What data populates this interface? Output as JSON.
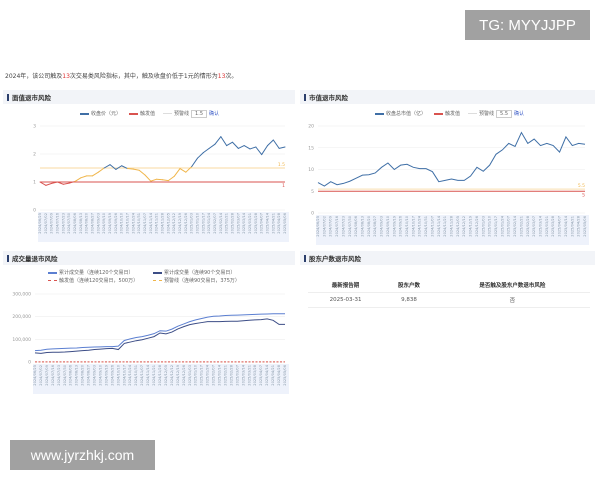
{
  "watermarks": {
    "tg": "TG: MYYJJPP",
    "site": "www.jyrzhkj.com"
  },
  "intro": {
    "p1": "2024年，该公司触及",
    "n1": "13",
    "p2": "次交易类风险指标，其中，触及收盘价低于1元的情形为",
    "n2": "13",
    "p3": "次。"
  },
  "sections": {
    "face": "面值退市风险",
    "cap": "市值退市风险",
    "vol": "成交量退市风险",
    "holders": "股东户数退市风险"
  },
  "colors": {
    "blue": "#3f6fa6",
    "red": "#d9534f",
    "orange": "#f0b64b",
    "navy": "#3c4d86",
    "light": "#5b7fd1"
  },
  "chart_data": [
    {
      "type": "line",
      "title": "面值退市风险",
      "legend": {
        "series": "收盘价（元）",
        "trigger": "触发值",
        "warn": "预警线",
        "warn_value": "1.5",
        "confirm": "确认"
      },
      "ylim": [
        0,
        3
      ],
      "yticks": [
        "0",
        "1",
        "2",
        "3"
      ],
      "trigger_value": 1,
      "warn_line": 1.5,
      "trigger_label": "1",
      "warn_label": "1.5",
      "x": [
        "2024/06/25",
        "2024/07/02",
        "2024/07/09",
        "2024/07/16",
        "2024/07/23",
        "2024/07/30",
        "2024/08/06",
        "2024/08/13",
        "2024/08/20",
        "2024/08/27",
        "2024/09/03",
        "2024/09/10",
        "2024/09/19",
        "2024/09/26",
        "2024/10/10",
        "2024/10/17",
        "2024/10/24",
        "2024/10/31",
        "2024/11/07",
        "2024/11/14",
        "2024/11/21",
        "2024/11/28",
        "2024/12/05",
        "2024/12/12",
        "2024/12/19",
        "2024/12/26",
        "2025/01/03",
        "2025/01/10",
        "2025/01/17",
        "2025/01/24",
        "2025/02/07",
        "2025/02/14",
        "2025/02/21",
        "2025/02/28",
        "2025/03/07",
        "2025/03/14",
        "2025/03/21",
        "2025/03/28",
        "2025/04/07",
        "2025/04/14",
        "2025/04/21",
        "2025/04/28",
        "2025/05/06"
      ],
      "values": [
        1.0,
        0.88,
        0.95,
        1.0,
        0.92,
        0.96,
        1.02,
        1.15,
        1.22,
        1.22,
        1.35,
        1.5,
        1.62,
        1.45,
        1.58,
        1.48,
        1.46,
        1.42,
        1.25,
        1.03,
        1.1,
        1.08,
        1.05,
        1.2,
        1.48,
        1.35,
        1.55,
        1.85,
        2.05,
        2.2,
        2.35,
        2.62,
        2.3,
        2.42,
        2.2,
        2.3,
        2.18,
        2.25,
        1.98,
        2.3,
        2.5,
        2.2,
        2.25
      ]
    },
    {
      "type": "line",
      "title": "市值退市风险",
      "legend": {
        "series": "收盘总市值（亿）",
        "trigger": "触发值",
        "warn": "预警线",
        "warn_value": "5.5",
        "confirm": "确认"
      },
      "ylim": [
        0,
        20
      ],
      "yticks": [
        "0",
        "5",
        "10",
        "15",
        "20"
      ],
      "trigger_value": 5,
      "warn_line": 5.5,
      "trigger_label": "5",
      "warn_label": "5.5",
      "x": [
        "2024/06/25",
        "2024/07/02",
        "2024/07/09",
        "2024/07/16",
        "2024/07/23",
        "2024/07/30",
        "2024/08/06",
        "2024/08/13",
        "2024/08/20",
        "2024/08/27",
        "2024/09/03",
        "2024/09/10",
        "2024/09/19",
        "2024/09/26",
        "2024/10/10",
        "2024/10/17",
        "2024/10/24",
        "2024/10/31",
        "2024/11/07",
        "2024/11/14",
        "2024/11/21",
        "2024/11/28",
        "2024/12/05",
        "2024/12/12",
        "2024/12/19",
        "2024/12/26",
        "2025/01/03",
        "2025/01/10",
        "2025/01/17",
        "2025/01/24",
        "2025/02/07",
        "2025/02/14",
        "2025/02/21",
        "2025/02/28",
        "2025/03/07",
        "2025/03/14",
        "2025/03/21",
        "2025/03/28",
        "2025/04/07",
        "2025/04/14",
        "2025/04/21",
        "2025/04/28",
        "2025/05/06"
      ],
      "values": [
        7,
        6.2,
        7.2,
        6.5,
        6.8,
        7.3,
        8,
        8.7,
        8.8,
        9.2,
        10.5,
        11.5,
        10,
        11,
        11.2,
        10.5,
        10.2,
        10.2,
        9.5,
        7.2,
        7.5,
        7.8,
        7.5,
        7.5,
        8.5,
        10.5,
        9.6,
        11,
        13.5,
        14.5,
        16,
        15.3,
        18.5,
        16,
        17,
        15.5,
        16,
        15.5,
        14,
        17.5,
        15.5,
        16,
        15.8
      ]
    },
    {
      "type": "line",
      "title": "成交量退市风险",
      "legend": {
        "s1": "累计成交量（连续120个交易日）",
        "s2": "累计成交量（连续90个交易日）",
        "trigger": "触发值（连续120交易日，500万）",
        "warn": "预警线（连续90交易日，375万）"
      },
      "ylim": [
        0,
        300000
      ],
      "yticks": [
        "0",
        "100,000",
        "200,000",
        "300,000"
      ],
      "trigger_value": 500,
      "warn_line": 375,
      "x": [
        "2024/06/25",
        "2024/07/02",
        "2024/07/09",
        "2024/07/16",
        "2024/07/23",
        "2024/07/30",
        "2024/08/06",
        "2024/08/13",
        "2024/08/20",
        "2024/08/27",
        "2024/09/03",
        "2024/09/10",
        "2024/09/19",
        "2024/09/26",
        "2024/10/10",
        "2024/10/17",
        "2024/10/24",
        "2024/10/31",
        "2024/11/07",
        "2024/11/14",
        "2024/11/21",
        "2024/11/28",
        "2024/12/05",
        "2024/12/12",
        "2024/12/19",
        "2024/12/26",
        "2025/01/03",
        "2025/01/10",
        "2025/01/17",
        "2025/01/24",
        "2025/02/07",
        "2025/02/14",
        "2025/02/21",
        "2025/02/28",
        "2025/03/07",
        "2025/03/14",
        "2025/03/21",
        "2025/03/28",
        "2025/04/07",
        "2025/04/14",
        "2025/04/21",
        "2025/04/28",
        "2025/05/06"
      ],
      "series": [
        {
          "name": "累计成交量（连续120个交易日）",
          "values": [
            50000,
            52000,
            56000,
            58000,
            59000,
            60000,
            61000,
            62000,
            64000,
            65000,
            66000,
            67000,
            68000,
            68000,
            70000,
            95000,
            102000,
            108000,
            112000,
            118000,
            125000,
            138000,
            136000,
            145000,
            158000,
            168000,
            178000,
            186000,
            192000,
            198000,
            202000,
            203000,
            205000,
            206000,
            207000,
            208000,
            209000,
            210000,
            211000,
            212000,
            213000,
            213000,
            213000
          ]
        },
        {
          "name": "累计成交量（连续90个交易日）",
          "values": [
            40000,
            38000,
            42000,
            43000,
            43000,
            44000,
            46000,
            48000,
            50000,
            52000,
            55000,
            57000,
            59000,
            60000,
            55000,
            82000,
            88000,
            94000,
            98000,
            105000,
            112000,
            128000,
            124000,
            132000,
            146000,
            156000,
            165000,
            170000,
            174000,
            178000,
            178000,
            178000,
            179000,
            180000,
            180000,
            182000,
            184000,
            186000,
            187000,
            190000,
            184000,
            166000,
            166000
          ]
        }
      ]
    }
  ],
  "table": {
    "headers": [
      "最新报告期",
      "股东户数",
      "是否触及股东户数退市风险"
    ],
    "rows": [
      [
        "2025-03-31",
        "9,838",
        "否"
      ]
    ]
  }
}
